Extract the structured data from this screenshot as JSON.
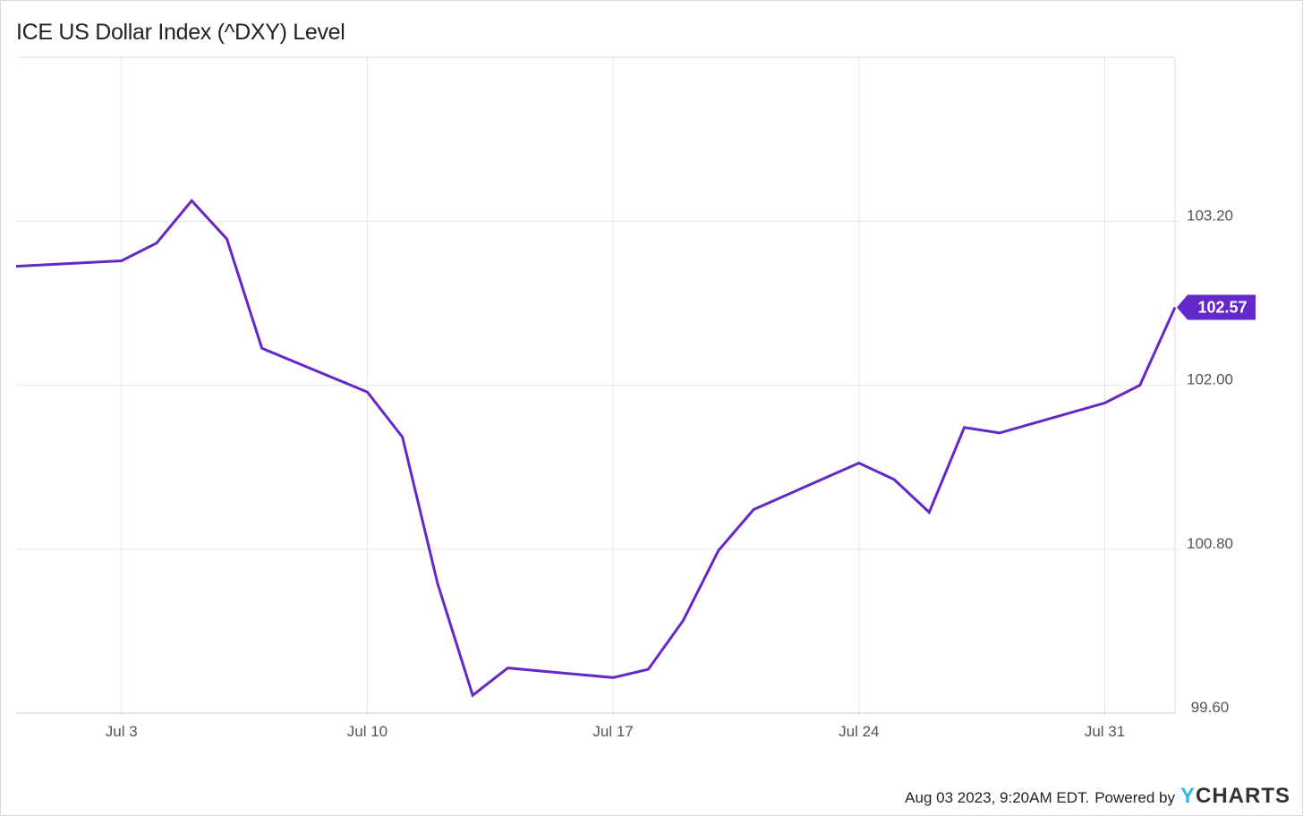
{
  "chart_title": "ICE US Dollar Index (^DXY) Level",
  "footer": {
    "timestamp": "Aug 03 2023, 9:20AM EDT.",
    "powered_by": "Powered by",
    "brand_y": "Y",
    "brand_rest": "CHARTS"
  },
  "colors": {
    "line": "#6428c8",
    "label_bg": "#6428c8",
    "grid": "#e6e6e6",
    "axis_text": "#555555",
    "brand_accent": "#2fb8e8"
  },
  "chart_data": {
    "type": "line",
    "title": "ICE US Dollar Index (^DXY) Level",
    "ylim": [
      99.6,
      104.4
    ],
    "yticks": [
      99.6,
      100.8,
      102.0,
      103.2
    ],
    "ytick_labels": [
      "99.60",
      "100.80",
      "102.00",
      "103.20"
    ],
    "xticks": [
      "2023-07-03",
      "2023-07-10",
      "2023-07-17",
      "2023-07-24",
      "2023-07-31"
    ],
    "xtick_labels": [
      "Jul 3",
      "Jul 10",
      "Jul 17",
      "Jul 24",
      "Jul 31"
    ],
    "xlim": [
      "2023-06-30",
      "2023-08-02"
    ],
    "grid": true,
    "last_value_label": "102.57",
    "series": [
      {
        "x": [
          "2023-06-30",
          "2023-07-03",
          "2023-07-04",
          "2023-07-05",
          "2023-07-06",
          "2023-07-07",
          "2023-07-10",
          "2023-07-11",
          "2023-07-12",
          "2023-07-13",
          "2023-07-14",
          "2023-07-17",
          "2023-07-18",
          "2023-07-19",
          "2023-07-20",
          "2023-07-21",
          "2023-07-24",
          "2023-07-25",
          "2023-07-26",
          "2023-07-27",
          "2023-07-28",
          "2023-07-31",
          "2023-08-01",
          "2023-08-02"
        ],
        "y": [
          102.87,
          102.91,
          103.04,
          103.35,
          103.07,
          102.27,
          101.95,
          101.62,
          100.55,
          99.73,
          99.93,
          99.86,
          99.92,
          100.28,
          100.79,
          101.09,
          101.43,
          101.31,
          101.07,
          101.69,
          101.65,
          101.87,
          102.0,
          102.57
        ]
      }
    ]
  }
}
